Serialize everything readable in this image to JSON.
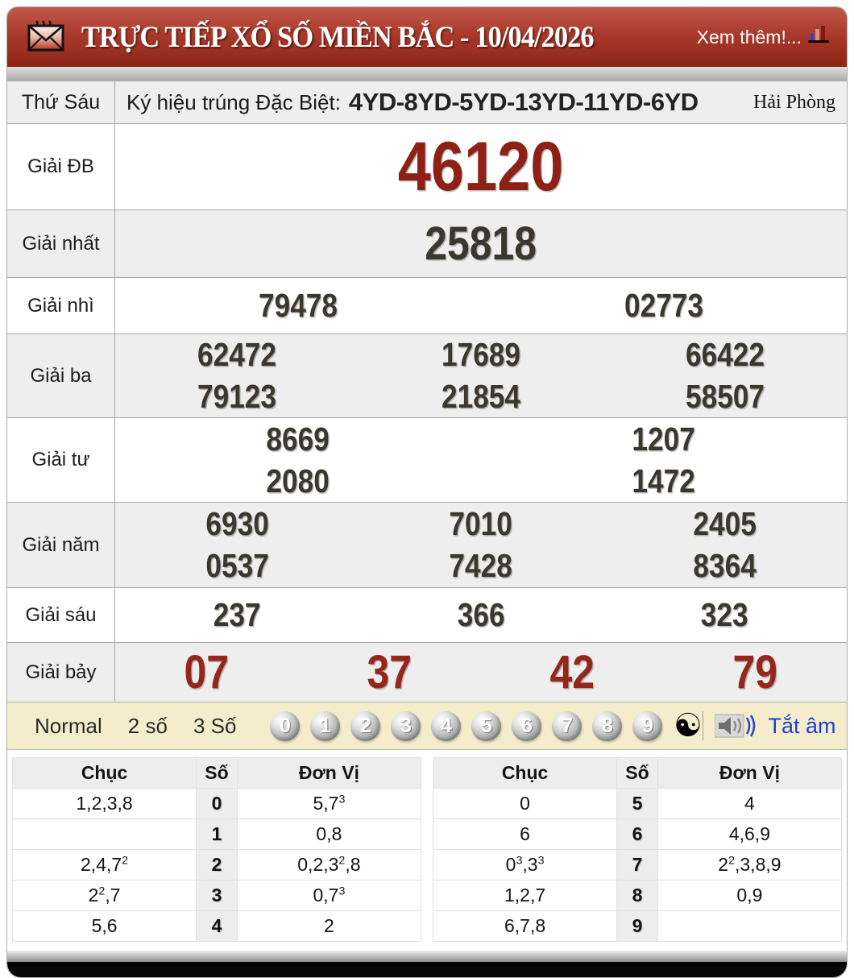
{
  "header": {
    "title": "TRỰC TIẾP XỔ SỐ MIỀN BẮC - 10/04/2026",
    "more_label": "Xem thêm!..."
  },
  "info_row": {
    "day": "Thứ Sáu",
    "symbol_label": "Ký hiệu trúng Đặc Biệt:",
    "symbol_codes": "4YD-8YD-5YD-13YD-11YD-6YD",
    "province": "Hải Phòng"
  },
  "prizes": {
    "db": {
      "label": "Giải ĐB",
      "rows": [
        [
          "46120"
        ]
      ]
    },
    "nhat": {
      "label": "Giải nhất",
      "rows": [
        [
          "25818"
        ]
      ]
    },
    "nhi": {
      "label": "Giải nhì",
      "rows": [
        [
          "79478",
          "02773"
        ]
      ]
    },
    "ba": {
      "label": "Giải ba",
      "rows": [
        [
          "62472",
          "17689",
          "66422"
        ],
        [
          "79123",
          "21854",
          "58507"
        ]
      ]
    },
    "tu": {
      "label": "Giải tư",
      "rows": [
        [
          "8669",
          "1207"
        ],
        [
          "2080",
          "1472"
        ]
      ]
    },
    "nam": {
      "label": "Giải năm",
      "rows": [
        [
          "6930",
          "7010",
          "2405"
        ],
        [
          "0537",
          "7428",
          "8364"
        ]
      ]
    },
    "sau": {
      "label": "Giải sáu",
      "rows": [
        [
          "237",
          "366",
          "323"
        ]
      ]
    },
    "bay": {
      "label": "Giải bảy",
      "rows": [
        [
          "07",
          "37",
          "42",
          "79"
        ]
      ]
    }
  },
  "controls": {
    "modes": [
      "Normal",
      "2 số",
      "3 Số"
    ],
    "balls": [
      "0",
      "1",
      "2",
      "3",
      "4",
      "5",
      "6",
      "7",
      "8",
      "9"
    ],
    "yinyang": "☯",
    "mute_label": "Tắt âm"
  },
  "stats_left": {
    "headers": [
      "Chục",
      "Số",
      "Đơn Vị"
    ],
    "rows": [
      {
        "chuc": "1,2,3,8",
        "so": "0",
        "donvi": "5,7^3"
      },
      {
        "chuc": "",
        "so": "1",
        "donvi": "0,8"
      },
      {
        "chuc": "2,4,7^2",
        "so": "2",
        "donvi": "0,2,3^2,8"
      },
      {
        "chuc": "2^2,7",
        "so": "3",
        "donvi": "0,7^3"
      },
      {
        "chuc": "5,6",
        "so": "4",
        "donvi": "2"
      }
    ]
  },
  "stats_right": {
    "headers": [
      "Chục",
      "Số",
      "Đơn Vị"
    ],
    "rows": [
      {
        "chuc": "0",
        "so": "5",
        "donvi": "4"
      },
      {
        "chuc": "6",
        "so": "6",
        "donvi": "4,6,9"
      },
      {
        "chuc": "0^3,3^3",
        "so": "7",
        "donvi": "2^2,3,8,9"
      },
      {
        "chuc": "1,2,7",
        "so": "8",
        "donvi": "0,9"
      },
      {
        "chuc": "6,7,8",
        "so": "9",
        "donvi": ""
      }
    ]
  },
  "colors": {
    "header_red": "#aa3a2b",
    "prize_red": "#8e2115",
    "number_dark": "#3a372e",
    "row_alt_gray": "#efeeee",
    "controls_cream": "#f4ecca",
    "mute_blue": "#1c40cf"
  }
}
